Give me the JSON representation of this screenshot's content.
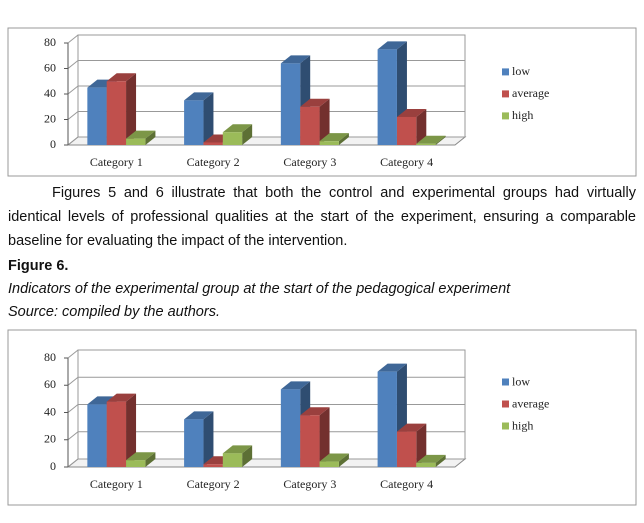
{
  "chart_data": [
    {
      "type": "bar",
      "categories": [
        "Category 1",
        "Category 2",
        "Category 3",
        "Category 4"
      ],
      "series": [
        {
          "name": "low",
          "color": "#4f81bd",
          "values": [
            45,
            35,
            64,
            75
          ]
        },
        {
          "name": "average",
          "color": "#c0504d",
          "values": [
            50,
            2,
            30,
            22
          ]
        },
        {
          "name": "high",
          "color": "#9bbb59",
          "values": [
            5,
            10,
            3,
            1
          ]
        }
      ],
      "ylim": [
        0,
        80
      ],
      "yticks": [
        0,
        20,
        40,
        60,
        80
      ],
      "grid": true,
      "legend": "right"
    },
    {
      "type": "bar",
      "categories": [
        "Category 1",
        "Category 2",
        "Category 3",
        "Category 4"
      ],
      "series": [
        {
          "name": "low",
          "color": "#4f81bd",
          "values": [
            46,
            35,
            57,
            70
          ]
        },
        {
          "name": "average",
          "color": "#c0504d",
          "values": [
            48,
            2,
            38,
            26
          ]
        },
        {
          "name": "high",
          "color": "#9bbb59",
          "values": [
            5,
            10,
            4,
            3
          ]
        }
      ],
      "ylim": [
        0,
        80
      ],
      "yticks": [
        0,
        20,
        40,
        60,
        80
      ],
      "grid": true,
      "legend": "right"
    }
  ],
  "text": {
    "paragraph": "Figures 5 and 6 illustrate that both the control and experimental groups had virtually identical levels of professional qualities at the start of the experiment, ensuring a comparable baseline for evaluating the impact of the intervention.",
    "figure_label": "Figure 6.",
    "caption": "Indicators of the experimental group at the start of the pedagogical experiment",
    "source": "Source: compiled by the authors."
  }
}
